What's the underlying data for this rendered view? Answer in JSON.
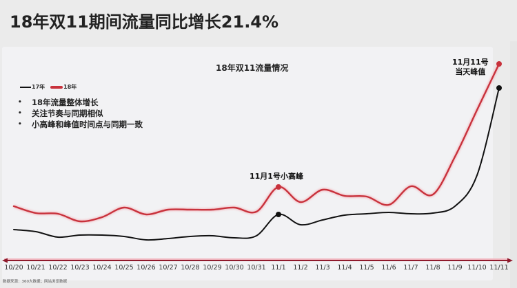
{
  "header": {
    "title": "18年双11期间流量同比增长21.4%"
  },
  "chart": {
    "title": "18年双11流量情况",
    "legend": [
      {
        "label": "17年",
        "color": "#111111"
      },
      {
        "label": "18年",
        "color": "#c8323c"
      }
    ],
    "bullets": [
      "18年流量整体增长",
      "关注节奏与同期相似",
      "小高峰和峰值时间点与同期一致"
    ],
    "bullet_glyph": "•",
    "annotations": {
      "nov1": "11月1号小高峰",
      "nov11_line1": "11月11号",
      "nov11_line2": "当天峰值"
    },
    "source": "数据来源：360大数据；网站浏览数据"
  },
  "colors": {
    "red_series": "#c8323c",
    "black_series": "#111111",
    "axis": "#8e1a2c",
    "background": "#ebebeb",
    "card": "#f2f2f4"
  },
  "chart_data": {
    "type": "line",
    "title": "18年双11流量情况",
    "xlabel": "",
    "ylabel": "",
    "categories": [
      "10/20",
      "10/21",
      "10/22",
      "10/23",
      "10/24",
      "10/25",
      "10/26",
      "10/27",
      "10/28",
      "10/29",
      "10/30",
      "10/31",
      "11/1",
      "11/2",
      "11/3",
      "11/4",
      "11/5",
      "11/6",
      "11/7",
      "11/8",
      "11/9",
      "11/10",
      "11/11"
    ],
    "series": [
      {
        "name": "17年",
        "color": "#111111",
        "values": [
          44,
          41,
          33,
          36,
          36,
          34,
          29,
          31,
          34,
          35,
          32,
          35,
          66,
          51,
          58,
          65,
          67,
          69,
          67,
          68,
          78,
          123,
          250
        ]
      },
      {
        "name": "18年",
        "color": "#c8323c",
        "values": [
          78,
          68,
          67,
          56,
          62,
          76,
          66,
          73,
          73,
          73,
          76,
          70,
          106,
          84,
          102,
          93,
          92,
          80,
          107,
          95,
          150,
          218,
          285
        ]
      }
    ],
    "markers": [
      {
        "series": "17年",
        "category": "11/1"
      },
      {
        "series": "18年",
        "category": "11/1"
      },
      {
        "series": "17年",
        "category": "11/11"
      },
      {
        "series": "18年",
        "category": "11/11"
      }
    ],
    "annotations": [
      "11月1号小高峰",
      "11月11号 当天峰值"
    ],
    "ylim": [
      0,
      300
    ],
    "grid": false,
    "yaxis_visible": false,
    "legend_position": "top-left",
    "notes": "Values are relative traffic index estimated from pixel heights (no y-axis shown)."
  }
}
